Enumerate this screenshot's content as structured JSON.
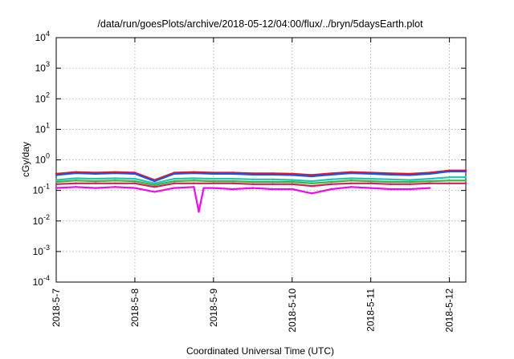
{
  "chart_data": {
    "type": "line",
    "title": "/data/run/goesPlots/archive/2018-05-12/04:00/flux/../bryn/5daysEarth.plot",
    "xlabel": "Coordinated Universal Time (UTC)",
    "ylabel": "cGy/day",
    "x_scale": "time",
    "xlim": [
      "2018-05-07T00:00",
      "2018-05-12T05:00"
    ],
    "x_ticks": [
      "2018-5-7",
      "2018-5-8",
      "2018-5-9",
      "2018-5-10",
      "2018-5-11",
      "2018-5-12"
    ],
    "x_tick_dates": [
      "2018-05-07T00:00",
      "2018-05-08T00:00",
      "2018-05-09T00:00",
      "2018-05-10T00:00",
      "2018-05-11T00:00",
      "2018-05-12T00:00"
    ],
    "y_scale": "log",
    "ylim": [
      0.0001,
      10000
    ],
    "y_ticks": [
      {
        "base": "10",
        "exp": "4"
      },
      {
        "base": "10",
        "exp": "3"
      },
      {
        "base": "10",
        "exp": "2"
      },
      {
        "base": "10",
        "exp": "1"
      },
      {
        "base": "10",
        "exp": "0"
      },
      {
        "base": "10",
        "exp": "-1"
      },
      {
        "base": "10",
        "exp": "-2"
      },
      {
        "base": "10",
        "exp": "-3"
      },
      {
        "base": "10",
        "exp": "-4"
      }
    ],
    "grid": true,
    "series": [
      {
        "color": "#e8142c",
        "x": [
          "2018-05-07T00:00",
          "2018-05-07T06:00",
          "2018-05-07T12:00",
          "2018-05-07T18:00",
          "2018-05-08T00:00",
          "2018-05-08T06:00",
          "2018-05-08T12:00",
          "2018-05-08T18:00",
          "2018-05-09T00:00",
          "2018-05-09T06:00",
          "2018-05-09T12:00",
          "2018-05-09T18:00",
          "2018-05-10T00:00",
          "2018-05-10T06:00",
          "2018-05-10T12:00",
          "2018-05-10T18:00",
          "2018-05-11T00:00",
          "2018-05-11T06:00",
          "2018-05-11T12:00",
          "2018-05-11T18:00",
          "2018-05-12T00:00",
          "2018-05-12T05:00"
        ],
        "values": [
          0.35,
          0.4,
          0.38,
          0.4,
          0.38,
          0.22,
          0.38,
          0.4,
          0.38,
          0.38,
          0.36,
          0.36,
          0.35,
          0.32,
          0.36,
          0.4,
          0.38,
          0.36,
          0.35,
          0.38,
          0.45,
          0.45
        ]
      },
      {
        "color": "#2050e8",
        "x": [
          "2018-05-07T00:00",
          "2018-05-07T06:00",
          "2018-05-07T12:00",
          "2018-05-07T18:00",
          "2018-05-08T00:00",
          "2018-05-08T06:00",
          "2018-05-08T12:00",
          "2018-05-08T18:00",
          "2018-05-09T00:00",
          "2018-05-09T06:00",
          "2018-05-09T12:00",
          "2018-05-09T18:00",
          "2018-05-10T00:00",
          "2018-05-10T06:00",
          "2018-05-10T12:00",
          "2018-05-10T18:00",
          "2018-05-11T00:00",
          "2018-05-11T06:00",
          "2018-05-11T12:00",
          "2018-05-11T18:00",
          "2018-05-12T00:00",
          "2018-05-12T05:00"
        ],
        "values": [
          0.32,
          0.37,
          0.35,
          0.37,
          0.35,
          0.2,
          0.35,
          0.37,
          0.35,
          0.35,
          0.33,
          0.33,
          0.32,
          0.29,
          0.33,
          0.37,
          0.35,
          0.33,
          0.32,
          0.35,
          0.42,
          0.42
        ]
      },
      {
        "color": "#1ec8b4",
        "x": [
          "2018-05-07T00:00",
          "2018-05-07T06:00",
          "2018-05-07T12:00",
          "2018-05-07T18:00",
          "2018-05-08T00:00",
          "2018-05-08T06:00",
          "2018-05-08T12:00",
          "2018-05-08T18:00",
          "2018-05-09T00:00",
          "2018-05-09T06:00",
          "2018-05-09T12:00",
          "2018-05-09T18:00",
          "2018-05-10T00:00",
          "2018-05-10T06:00",
          "2018-05-10T12:00",
          "2018-05-10T18:00",
          "2018-05-11T00:00",
          "2018-05-11T06:00",
          "2018-05-11T12:00",
          "2018-05-11T18:00",
          "2018-05-12T00:00",
          "2018-05-12T05:00"
        ],
        "values": [
          0.22,
          0.25,
          0.24,
          0.25,
          0.24,
          0.17,
          0.24,
          0.25,
          0.24,
          0.24,
          0.23,
          0.23,
          0.22,
          0.2,
          0.23,
          0.25,
          0.24,
          0.23,
          0.22,
          0.24,
          0.27,
          0.27
        ]
      },
      {
        "color": "#3cb43c",
        "x": [
          "2018-05-07T00:00",
          "2018-05-07T06:00",
          "2018-05-07T12:00",
          "2018-05-07T18:00",
          "2018-05-08T00:00",
          "2018-05-08T06:00",
          "2018-05-08T12:00",
          "2018-05-08T18:00",
          "2018-05-09T00:00",
          "2018-05-09T06:00",
          "2018-05-09T12:00",
          "2018-05-09T18:00",
          "2018-05-10T00:00",
          "2018-05-10T06:00",
          "2018-05-10T12:00",
          "2018-05-10T18:00",
          "2018-05-11T00:00",
          "2018-05-11T06:00",
          "2018-05-11T12:00",
          "2018-05-11T18:00",
          "2018-05-12T00:00",
          "2018-05-12T05:00"
        ],
        "values": [
          0.19,
          0.21,
          0.2,
          0.21,
          0.2,
          0.15,
          0.2,
          0.21,
          0.2,
          0.2,
          0.19,
          0.19,
          0.19,
          0.17,
          0.19,
          0.21,
          0.2,
          0.19,
          0.19,
          0.2,
          0.21,
          0.21
        ]
      },
      {
        "color": "#d21e5a",
        "x": [
          "2018-05-07T00:00",
          "2018-05-07T06:00",
          "2018-05-07T12:00",
          "2018-05-07T18:00",
          "2018-05-08T00:00",
          "2018-05-08T06:00",
          "2018-05-08T12:00",
          "2018-05-08T18:00",
          "2018-05-09T00:00",
          "2018-05-09T06:00",
          "2018-05-09T12:00",
          "2018-05-09T18:00",
          "2018-05-10T00:00",
          "2018-05-10T06:00",
          "2018-05-10T12:00",
          "2018-05-10T18:00",
          "2018-05-11T00:00",
          "2018-05-11T06:00",
          "2018-05-11T12:00",
          "2018-05-11T18:00",
          "2018-05-12T00:00",
          "2018-05-12T05:00"
        ],
        "values": [
          0.16,
          0.17,
          0.17,
          0.17,
          0.17,
          0.13,
          0.17,
          0.17,
          0.17,
          0.17,
          0.16,
          0.16,
          0.16,
          0.14,
          0.16,
          0.17,
          0.17,
          0.16,
          0.16,
          0.17,
          0.17,
          0.17
        ]
      },
      {
        "color": "#f00af0",
        "x": [
          "2018-05-07T00:00",
          "2018-05-07T06:00",
          "2018-05-07T12:00",
          "2018-05-07T18:00",
          "2018-05-08T00:00",
          "2018-05-08T06:00",
          "2018-05-08T12:00",
          "2018-05-08T18:00",
          "2018-05-08T19:30",
          "2018-05-08T21:00",
          "2018-05-09T00:00",
          "2018-05-09T06:00",
          "2018-05-09T12:00",
          "2018-05-09T18:00",
          "2018-05-10T00:00",
          "2018-05-10T06:00",
          "2018-05-10T12:00",
          "2018-05-10T18:00",
          "2018-05-11T00:00",
          "2018-05-11T06:00",
          "2018-05-11T12:00",
          "2018-05-11T18:00"
        ],
        "values": [
          0.12,
          0.13,
          0.12,
          0.13,
          0.12,
          0.09,
          0.12,
          0.13,
          0.02,
          0.12,
          0.12,
          0.11,
          0.12,
          0.11,
          0.11,
          0.08,
          0.11,
          0.13,
          0.12,
          0.11,
          0.11,
          0.12
        ]
      }
    ]
  }
}
